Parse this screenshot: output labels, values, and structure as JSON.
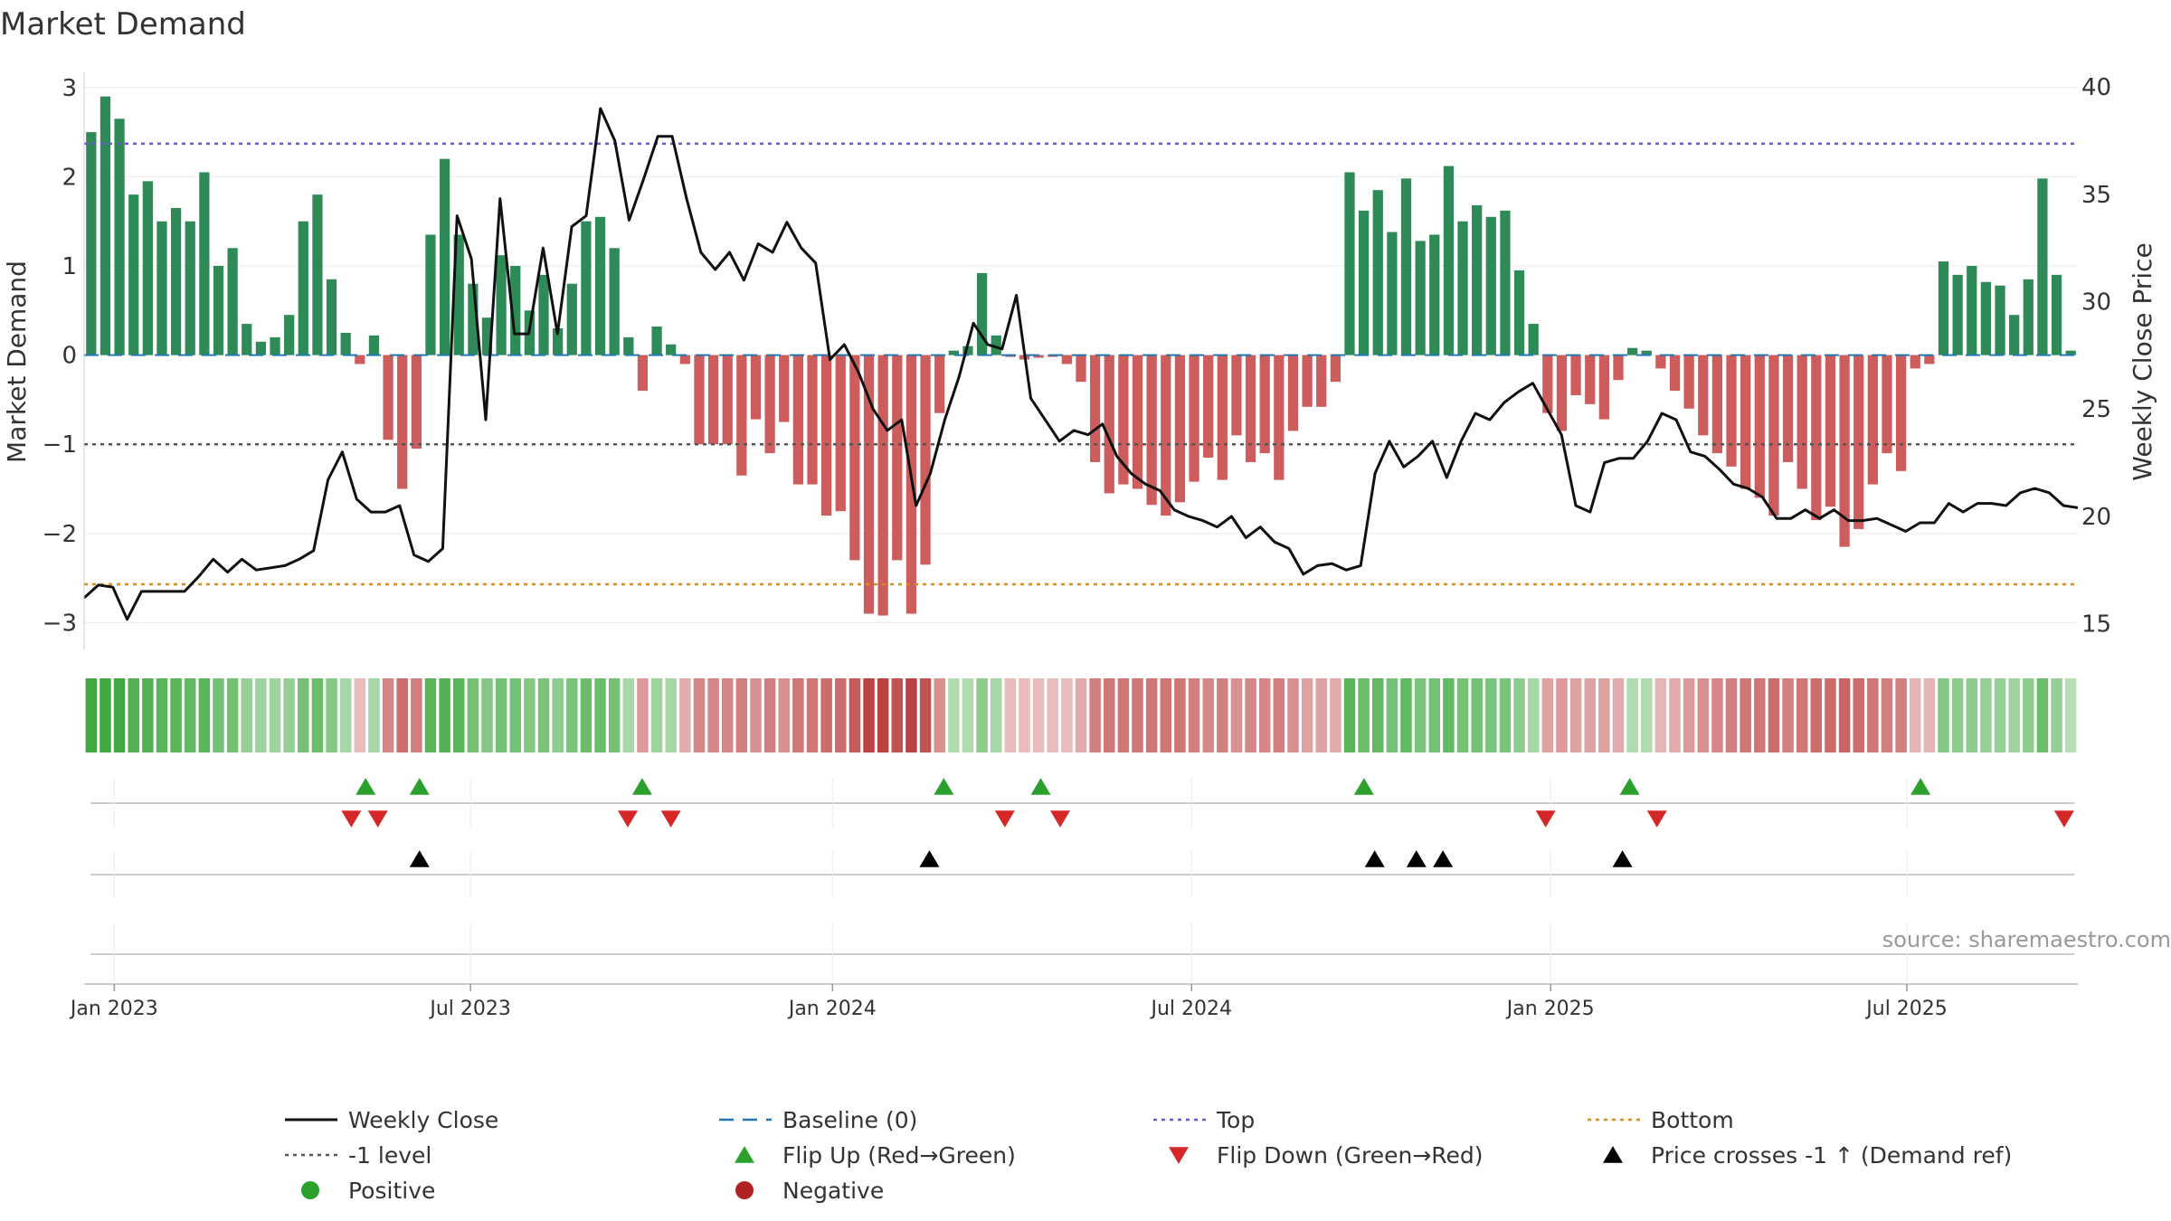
{
  "chart_data": {
    "type": "bar",
    "title": "Market Demand",
    "ylabel": "Market Demand",
    "y2label": "Weekly Close Price",
    "ylim": [
      -3.3,
      3.15
    ],
    "y2lim": [
      13.8,
      40.6
    ],
    "yticks": [
      3,
      2,
      1,
      0,
      -1,
      -2,
      -3
    ],
    "ytick_labels": [
      "3",
      "2",
      "1",
      "0",
      "−1",
      "−2",
      "−3"
    ],
    "y2ticks": [
      40,
      35,
      30,
      25,
      20,
      15
    ],
    "x_start": 2022.958,
    "x_end": 2025.734,
    "xticks": [
      2023.0,
      2023.496,
      2024.0,
      2024.5,
      2025.0,
      2025.496
    ],
    "xtick_labels": [
      "Jan 2023",
      "Jul 2023",
      "Jan 2024",
      "Jul 2024",
      "Jan 2025",
      "Jul 2025"
    ],
    "levels": {
      "top": 2.37,
      "minus_one": -1.0,
      "bottom": -2.57,
      "baseline": 0
    },
    "demand": [
      2.5,
      2.9,
      2.65,
      1.8,
      1.95,
      1.5,
      1.65,
      1.5,
      2.05,
      1.0,
      1.2,
      0.35,
      0.15,
      0.2,
      0.45,
      1.5,
      1.8,
      0.85,
      0.25,
      -0.1,
      0.22,
      -0.95,
      -1.5,
      -1.05,
      1.35,
      2.2,
      1.35,
      0.8,
      0.42,
      1.12,
      1.0,
      0.5,
      0.9,
      0.3,
      0.8,
      1.5,
      1.55,
      1.2,
      0.2,
      -0.4,
      0.32,
      0.12,
      -0.1,
      -1.0,
      -1.0,
      -1.0,
      -1.35,
      -0.72,
      -1.1,
      -0.75,
      -1.45,
      -1.45,
      -1.8,
      -1.75,
      -2.3,
      -2.9,
      -2.92,
      -2.3,
      -2.9,
      -2.35,
      -0.65,
      0.05,
      0.1,
      0.92,
      0.22,
      -0.02,
      -0.05,
      -0.03,
      -0.02,
      -0.1,
      -0.3,
      -1.2,
      -1.55,
      -1.45,
      -1.5,
      -1.68,
      -1.8,
      -1.65,
      -1.42,
      -1.15,
      -1.4,
      -0.9,
      -1.2,
      -1.1,
      -1.4,
      -0.85,
      -0.58,
      -0.58,
      -0.3,
      2.05,
      1.62,
      1.85,
      1.38,
      1.98,
      1.28,
      1.35,
      2.12,
      1.5,
      1.68,
      1.55,
      1.62,
      0.95,
      0.35,
      -0.65,
      -0.85,
      -0.45,
      -0.55,
      -0.72,
      -0.28,
      0.08,
      0.05,
      -0.15,
      -0.4,
      -0.6,
      -0.9,
      -1.1,
      -1.25,
      -1.5,
      -1.6,
      -1.8,
      -1.2,
      -1.5,
      -1.85,
      -1.7,
      -2.15,
      -1.95,
      -1.45,
      -1.1,
      -1.3,
      -0.15,
      -0.1,
      1.05,
      0.9,
      1.0,
      0.82,
      0.78,
      0.45,
      0.85,
      1.98,
      0.9,
      0.05
    ],
    "strip": [
      0.9,
      0.9,
      0.9,
      0.8,
      0.8,
      0.75,
      0.75,
      0.7,
      0.75,
      0.6,
      0.6,
      0.4,
      0.35,
      0.35,
      0.4,
      0.6,
      0.65,
      0.5,
      0.3,
      -0.15,
      0.3,
      -0.45,
      -0.6,
      -0.5,
      0.75,
      0.8,
      0.75,
      0.6,
      0.5,
      0.6,
      0.6,
      0.5,
      0.55,
      0.45,
      0.55,
      0.65,
      0.65,
      0.6,
      0.3,
      -0.35,
      0.35,
      0.3,
      -0.25,
      -0.45,
      -0.45,
      -0.45,
      -0.5,
      -0.4,
      -0.5,
      -0.4,
      -0.55,
      -0.55,
      -0.6,
      -0.6,
      -0.7,
      -0.85,
      -0.85,
      -0.75,
      -0.85,
      -0.75,
      -0.4,
      0.25,
      0.25,
      0.45,
      0.3,
      -0.15,
      -0.15,
      -0.15,
      -0.15,
      -0.15,
      -0.25,
      -0.5,
      -0.55,
      -0.55,
      -0.55,
      -0.55,
      -0.55,
      -0.55,
      -0.5,
      -0.45,
      -0.5,
      -0.4,
      -0.45,
      -0.45,
      -0.5,
      -0.4,
      -0.3,
      -0.3,
      -0.25,
      0.75,
      0.65,
      0.7,
      0.6,
      0.7,
      0.55,
      0.6,
      0.7,
      0.6,
      0.6,
      0.55,
      0.55,
      0.45,
      0.3,
      -0.3,
      -0.35,
      -0.3,
      -0.3,
      -0.3,
      -0.25,
      0.25,
      0.25,
      -0.2,
      -0.25,
      -0.35,
      -0.4,
      -0.45,
      -0.5,
      -0.55,
      -0.55,
      -0.6,
      -0.5,
      -0.55,
      -0.6,
      -0.6,
      -0.65,
      -0.6,
      -0.55,
      -0.5,
      -0.5,
      -0.2,
      -0.2,
      0.5,
      0.45,
      0.45,
      0.4,
      0.4,
      0.35,
      0.45,
      0.65,
      0.4,
      0.2
    ],
    "price": [
      16.2,
      16.8,
      16.7,
      15.2,
      16.5,
      16.5,
      16.5,
      16.5,
      17.2,
      18.0,
      17.4,
      18.0,
      17.5,
      17.6,
      17.7,
      18.0,
      18.4,
      21.7,
      23.0,
      20.8,
      20.2,
      20.2,
      20.5,
      18.2,
      17.9,
      18.5,
      34.0,
      32.0,
      24.5,
      34.8,
      28.5,
      28.5,
      32.5,
      28.5,
      33.5,
      34.0,
      39.0,
      37.5,
      33.8,
      35.7,
      37.7,
      37.7,
      34.8,
      32.3,
      31.5,
      32.3,
      31.0,
      32.7,
      32.3,
      33.7,
      32.5,
      31.8,
      27.3,
      28.0,
      26.7,
      25.0,
      24.0,
      24.5,
      20.5,
      22.0,
      24.5,
      26.5,
      29.0,
      28.0,
      27.8,
      30.3,
      25.5,
      24.5,
      23.5,
      24.0,
      23.8,
      24.3,
      22.8,
      22.0,
      21.5,
      21.2,
      20.3,
      20.0,
      19.8,
      19.5,
      20.0,
      19.0,
      19.5,
      18.8,
      18.5,
      17.3,
      17.7,
      17.8,
      17.5,
      17.7,
      22.0,
      23.5,
      22.3,
      22.8,
      23.5,
      21.8,
      23.5,
      24.8,
      24.5,
      25.3,
      25.8,
      26.2,
      25.0,
      23.8,
      20.5,
      20.2,
      22.5,
      22.7,
      22.7,
      23.5,
      24.8,
      24.5,
      23.0,
      22.8,
      22.2,
      21.5,
      21.3,
      20.9,
      19.9,
      19.9,
      20.3,
      19.9,
      20.3,
      19.8,
      19.8,
      19.9,
      19.6,
      19.3,
      19.7,
      19.7,
      20.6,
      20.2,
      20.6,
      20.6,
      20.5,
      21.1,
      21.3,
      21.1,
      20.5,
      20.4
    ],
    "flip_up_x": [
      2023.35,
      2023.425,
      2023.735,
      2024.155,
      2024.29,
      2024.74,
      2025.11,
      2025.515
    ],
    "flip_down_x": [
      2023.33,
      2023.367,
      2023.715,
      2023.775,
      2024.24,
      2024.317,
      2024.993,
      2025.148,
      2025.715
    ],
    "cross_x": [
      2023.425,
      2024.135,
      2024.755,
      2024.813,
      2024.85,
      2025.1
    ],
    "legend": [
      {
        "label": "Weekly Close",
        "kind": "line",
        "color": "#111111"
      },
      {
        "label": "Baseline (0)",
        "kind": "dash",
        "color": "#1f77b4"
      },
      {
        "label": "Top",
        "kind": "dot",
        "color": "#6a5acd"
      },
      {
        "label": "Bottom",
        "kind": "dot",
        "color": "#d98c1a"
      },
      {
        "label": "-1 level",
        "kind": "dot",
        "color": "#555555"
      },
      {
        "label": "Flip Up (Red→Green)",
        "kind": "tri-up",
        "color": "#2ca02c"
      },
      {
        "label": "Flip Down (Green→Red)",
        "kind": "tri-down",
        "color": "#d62728"
      },
      {
        "label": "Price crosses -1 ↑ (Demand ref)",
        "kind": "tri-up",
        "color": "#000000"
      },
      {
        "label": "Positive",
        "kind": "circle",
        "color": "#2ca02c"
      },
      {
        "label": "Negative",
        "kind": "circle",
        "color": "#b22222"
      }
    ],
    "source": "source: sharemaestro.com"
  },
  "colors": {
    "pos_bar": "#2e8b57",
    "neg_bar": "#cd5c5c",
    "price_line": "#111111",
    "baseline": "#1f77b4",
    "top": "#6a5acd",
    "minus_one": "#555555",
    "bottom": "#d98c1a",
    "flip_up": "#2ca02c",
    "flip_down": "#d62728",
    "cross": "#000000",
    "strip_pos": "#2ca02c",
    "strip_neg": "#b22222"
  }
}
